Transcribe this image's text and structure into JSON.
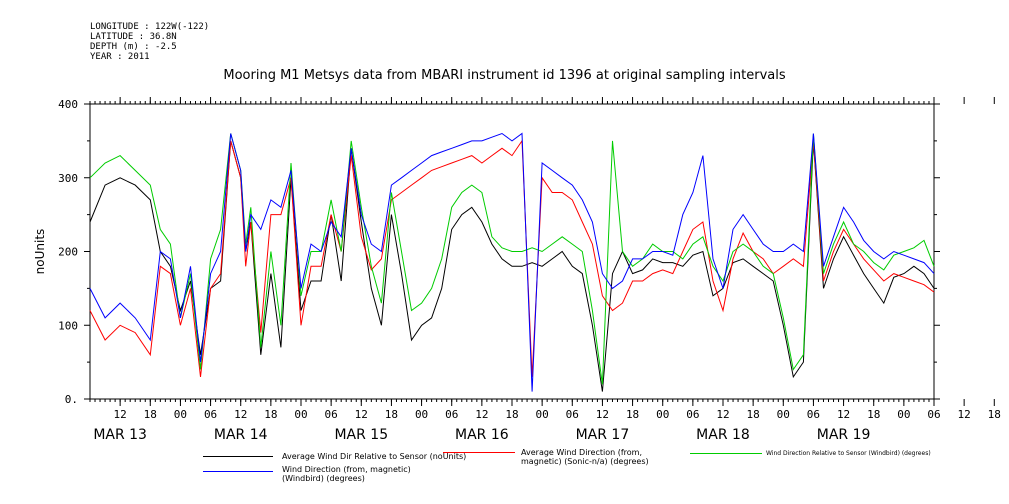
{
  "meta": {
    "longitude": "LONGITUDE : 122W(-122)",
    "latitude": "LATITUDE : 36.8N",
    "depth": "DEPTH (m) : -2.5",
    "year": "YEAR : 2011"
  },
  "chart_data": {
    "type": "line",
    "title": "Mooring M1 Metsys data from MBARI instrument id 1396 at original sampling intervals",
    "ylabel": "noUnits",
    "xlabel": "",
    "ylim": [
      0,
      400
    ],
    "yticks": [
      "0.",
      "100",
      "200",
      "300",
      "400"
    ],
    "hour_ticks": [
      "12",
      "18",
      "00",
      "06",
      "12",
      "18",
      "00",
      "06",
      "12",
      "18",
      "00",
      "06",
      "12",
      "18",
      "00",
      "06",
      "12",
      "18",
      "00",
      "06",
      "12",
      "18",
      "00",
      "06",
      "12",
      "18",
      "00",
      "06",
      "12",
      "18",
      "00"
    ],
    "day_labels": [
      "MAR 13",
      "MAR 14",
      "MAR 15",
      "MAR 16",
      "MAR 17",
      "MAR 18",
      "MAR 19"
    ],
    "x_range_hours": [
      6,
      174
    ],
    "grid": false,
    "series": [
      {
        "name": "Average Wind Dir Relative to Sensor (noUnits)",
        "color": "#000000",
        "x": [
          6,
          9,
          12,
          15,
          18,
          20,
          22,
          24,
          26,
          28,
          30,
          32,
          34,
          36,
          37,
          38,
          40,
          42,
          44,
          46,
          48,
          50,
          52,
          54,
          56,
          58,
          60,
          62,
          64,
          66,
          68,
          70,
          72,
          74,
          76,
          78,
          80,
          82,
          84,
          86,
          88,
          90,
          92,
          94,
          96,
          98,
          100,
          102,
          104,
          106,
          108,
          110,
          112,
          114,
          116,
          118,
          120,
          122,
          124,
          126,
          128,
          130,
          132,
          134,
          136,
          138,
          140,
          142,
          144,
          146,
          148,
          150,
          152,
          154,
          156,
          158,
          160,
          162,
          164,
          166,
          168,
          170,
          172,
          174
        ],
        "y": [
          240,
          290,
          300,
          290,
          270,
          200,
          180,
          120,
          160,
          60,
          150,
          160,
          350,
          300,
          200,
          240,
          60,
          170,
          70,
          300,
          120,
          160,
          160,
          250,
          160,
          340,
          240,
          150,
          100,
          250,
          170,
          80,
          100,
          110,
          150,
          230,
          250,
          260,
          240,
          210,
          190,
          180,
          180,
          185,
          180,
          190,
          200,
          180,
          170,
          100,
          10,
          170,
          200,
          170,
          175,
          190,
          185,
          185,
          180,
          195,
          200,
          140,
          150,
          185,
          190,
          180,
          170,
          160,
          100,
          30,
          50,
          350,
          150,
          190,
          220,
          195,
          170,
          150,
          130,
          165,
          170,
          180,
          170,
          150
        ]
      },
      {
        "name": "Average Wind Direction (from, magnetic) (Sonic-n/a) (degrees)",
        "color": "#ff0000",
        "x": [
          6,
          9,
          12,
          15,
          18,
          20,
          22,
          24,
          26,
          28,
          30,
          32,
          34,
          36,
          37,
          38,
          40,
          42,
          44,
          46,
          48,
          50,
          52,
          54,
          56,
          58,
          60,
          62,
          64,
          66,
          68,
          70,
          72,
          74,
          76,
          78,
          80,
          82,
          84,
          86,
          88,
          90,
          92,
          94,
          96,
          98,
          100,
          102,
          104,
          106,
          108,
          110,
          112,
          114,
          116,
          118,
          120,
          122,
          124,
          126,
          128,
          130,
          132,
          134,
          136,
          138,
          140,
          142,
          144,
          146,
          148,
          150,
          152,
          154,
          156,
          158,
          160,
          162,
          164,
          166,
          168,
          170,
          172,
          174
        ],
        "y": [
          120,
          80,
          100,
          90,
          60,
          180,
          170,
          100,
          150,
          30,
          150,
          170,
          350,
          300,
          180,
          240,
          90,
          250,
          250,
          300,
          100,
          180,
          180,
          250,
          200,
          330,
          220,
          175,
          190,
          270,
          280,
          290,
          300,
          310,
          315,
          320,
          325,
          330,
          320,
          330,
          340,
          330,
          350,
          30,
          300,
          280,
          280,
          270,
          240,
          210,
          140,
          120,
          130,
          160,
          160,
          170,
          175,
          170,
          200,
          230,
          240,
          160,
          120,
          190,
          225,
          200,
          190,
          170,
          180,
          190,
          180,
          350,
          160,
          200,
          230,
          210,
          190,
          175,
          160,
          170,
          165,
          160,
          155,
          145
        ]
      },
      {
        "name": "Wind Direction Relative to Sensor (Windbird) (degrees)",
        "color": "#00cc00",
        "x": [
          6,
          9,
          12,
          15,
          18,
          20,
          22,
          24,
          26,
          28,
          30,
          32,
          34,
          36,
          37,
          38,
          40,
          42,
          44,
          46,
          48,
          50,
          52,
          54,
          56,
          58,
          60,
          62,
          64,
          66,
          68,
          70,
          72,
          74,
          76,
          78,
          80,
          82,
          84,
          86,
          88,
          90,
          92,
          94,
          96,
          98,
          100,
          102,
          104,
          106,
          108,
          110,
          112,
          114,
          116,
          118,
          120,
          122,
          124,
          126,
          128,
          130,
          132,
          134,
          136,
          138,
          140,
          142,
          144,
          146,
          148,
          150,
          152,
          154,
          156,
          158,
          160,
          162,
          164,
          166,
          168,
          170,
          172,
          174
        ],
        "y": [
          300,
          320,
          330,
          310,
          290,
          230,
          210,
          110,
          170,
          40,
          190,
          230,
          360,
          310,
          210,
          260,
          70,
          200,
          100,
          320,
          140,
          200,
          200,
          270,
          200,
          350,
          260,
          180,
          130,
          280,
          200,
          120,
          130,
          150,
          190,
          260,
          280,
          290,
          280,
          220,
          205,
          200,
          200,
          205,
          200,
          210,
          220,
          210,
          200,
          120,
          20,
          350,
          200,
          180,
          190,
          210,
          200,
          200,
          190,
          210,
          220,
          180,
          160,
          200,
          210,
          200,
          180,
          170,
          110,
          40,
          60,
          360,
          170,
          210,
          240,
          210,
          200,
          185,
          175,
          195,
          200,
          205,
          215,
          180
        ]
      },
      {
        "name": "Wind Direction (from, magnetic) (Windbird) (degrees)",
        "color": "#0000ff",
        "x": [
          6,
          9,
          12,
          15,
          18,
          20,
          22,
          24,
          26,
          28,
          30,
          32,
          34,
          36,
          37,
          38,
          40,
          42,
          44,
          46,
          48,
          50,
          52,
          54,
          56,
          58,
          60,
          62,
          64,
          66,
          68,
          70,
          72,
          74,
          76,
          78,
          80,
          82,
          84,
          86,
          88,
          90,
          92,
          94,
          96,
          98,
          100,
          102,
          104,
          106,
          108,
          110,
          112,
          114,
          116,
          118,
          120,
          122,
          124,
          126,
          128,
          130,
          132,
          134,
          136,
          138,
          140,
          142,
          144,
          146,
          148,
          150,
          152,
          154,
          156,
          158,
          160,
          162,
          164,
          166,
          168,
          170,
          172,
          174
        ],
        "y": [
          150,
          110,
          130,
          110,
          80,
          200,
          190,
          110,
          180,
          50,
          170,
          200,
          360,
          310,
          200,
          250,
          230,
          270,
          260,
          310,
          150,
          210,
          200,
          240,
          220,
          340,
          250,
          210,
          200,
          290,
          300,
          310,
          320,
          330,
          335,
          340,
          345,
          350,
          350,
          355,
          360,
          350,
          360,
          10,
          320,
          310,
          300,
          290,
          270,
          240,
          170,
          150,
          160,
          190,
          190,
          200,
          200,
          195,
          250,
          280,
          330,
          190,
          150,
          230,
          250,
          230,
          210,
          200,
          200,
          210,
          200,
          360,
          180,
          220,
          260,
          240,
          215,
          200,
          190,
          200,
          195,
          190,
          185,
          170
        ]
      }
    ]
  }
}
